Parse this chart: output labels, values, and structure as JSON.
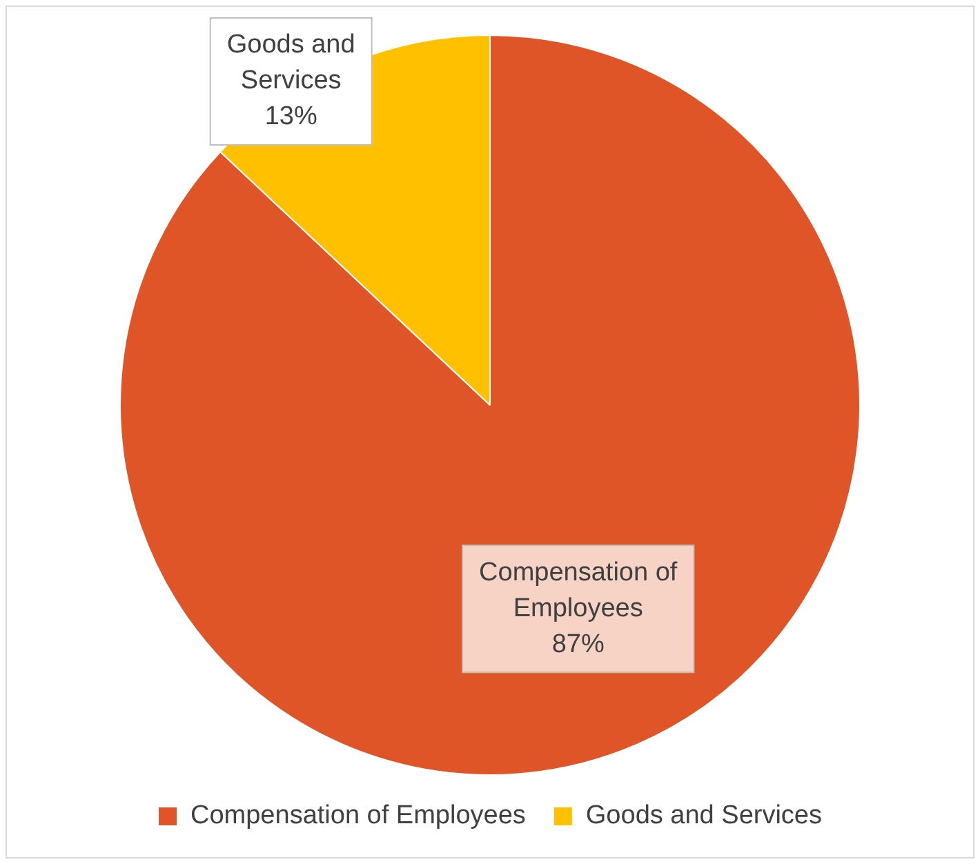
{
  "chart_data": {
    "type": "pie",
    "categories": [
      "Compensation of Employees",
      "Goods and Services"
    ],
    "values": [
      87,
      13
    ],
    "colors": [
      "#e05527",
      "#ffc000"
    ],
    "value_labels": [
      "87%",
      "13%"
    ],
    "legend": "bottom"
  }
}
